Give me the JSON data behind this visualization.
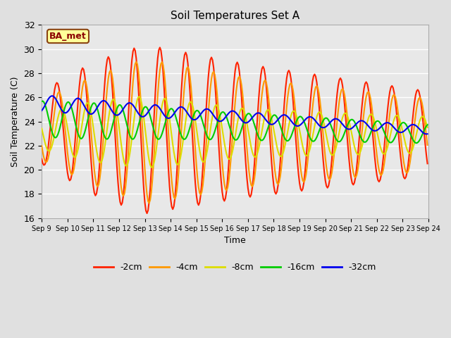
{
  "title": "Soil Temperatures Set A",
  "xlabel": "Time",
  "ylabel": "Soil Temperature (C)",
  "ylim": [
    16,
    32
  ],
  "background_color": "#e0e0e0",
  "plot_bg_color": "#e8e8e8",
  "grid_color": "#ffffff",
  "colors": {
    "-2cm": "#ff2200",
    "-4cm": "#ff9900",
    "-8cm": "#dddd00",
    "-16cm": "#00cc00",
    "-32cm": "#0000ee"
  },
  "legend_label": "BA_met",
  "xtick_labels": [
    "Sep 9",
    "Sep 10",
    "Sep 11",
    "Sep 12",
    "Sep 13",
    "Sep 14",
    "Sep 15",
    "Sep 16",
    "Sep 17",
    "Sep 18",
    "Sep 19",
    "Sep 20",
    "Sep 21",
    "Sep 22",
    "Sep 23",
    "Sep 24"
  ],
  "ytick_labels": [
    16,
    18,
    20,
    22,
    24,
    26,
    28,
    30,
    32
  ],
  "line_width": 1.5,
  "n_days": 15
}
